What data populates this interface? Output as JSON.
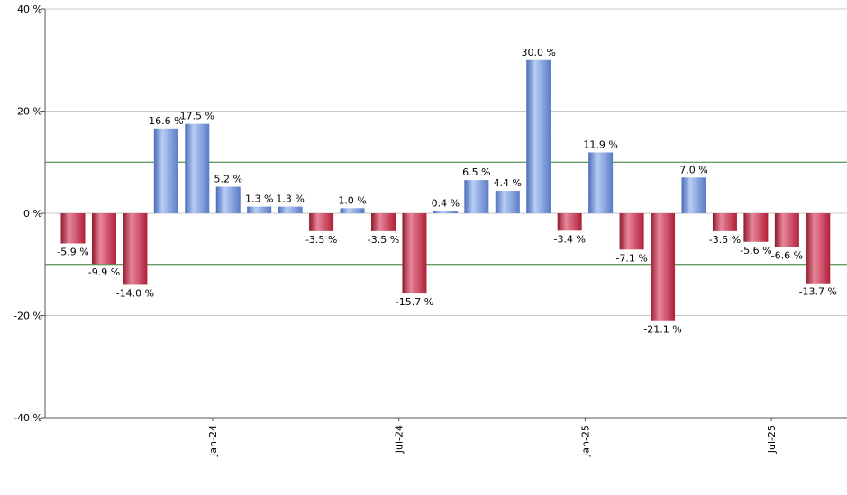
{
  "chart_data": {
    "type": "bar",
    "title": "",
    "xlabel": "",
    "ylabel": "",
    "ylim": [
      -40,
      40
    ],
    "y_ticks": [
      {
        "value": 40,
        "label": "40 %"
      },
      {
        "value": 20,
        "label": "20 %"
      },
      {
        "value": 0,
        "label": "0 %"
      },
      {
        "value": -20,
        "label": "-20 %"
      },
      {
        "value": -40,
        "label": "-40 %"
      }
    ],
    "reference_lines": [
      10,
      -10
    ],
    "grid": true,
    "x_tick_labels": [
      {
        "label": "Jan-24",
        "at_index": 4.5
      },
      {
        "label": "Jul-24",
        "at_index": 10.5
      },
      {
        "label": "Jan-25",
        "at_index": 16.5
      },
      {
        "label": "Jul-25",
        "at_index": 22.5
      }
    ],
    "values": [
      -5.9,
      -9.9,
      -14.0,
      16.6,
      17.5,
      5.2,
      1.3,
      1.3,
      -3.5,
      1.0,
      -3.5,
      -15.7,
      0.4,
      6.5,
      4.4,
      30.0,
      -3.4,
      11.9,
      -7.1,
      -21.1,
      7.0,
      -3.5,
      -5.6,
      -6.6,
      -13.7
    ],
    "value_labels": [
      "-5.9 %",
      "-9.9 %",
      "-14.0 %",
      "16.6 %",
      "17.5 %",
      "5.2 %",
      "1.3 %",
      "1.3 %",
      "-3.5 %",
      "1.0 %",
      "-3.5 %",
      "-15.7 %",
      "0.4 %",
      "6.5 %",
      "4.4 %",
      "30.0 %",
      "-3.4 %",
      "11.9 %",
      "-7.1 %",
      "-21.1 %",
      "7.0 %",
      "-3.5 %",
      "-5.6 %",
      "-6.6 %",
      "-13.7 %"
    ],
    "colors": {
      "positive": "#7f9fe0",
      "positive_dark": "#4a6cb8",
      "negative": "#c8283f",
      "negative_light": "#e8869a",
      "reference_line": "#2e7d2e",
      "grid": "#c8c8c8",
      "axis": "#555555"
    }
  }
}
